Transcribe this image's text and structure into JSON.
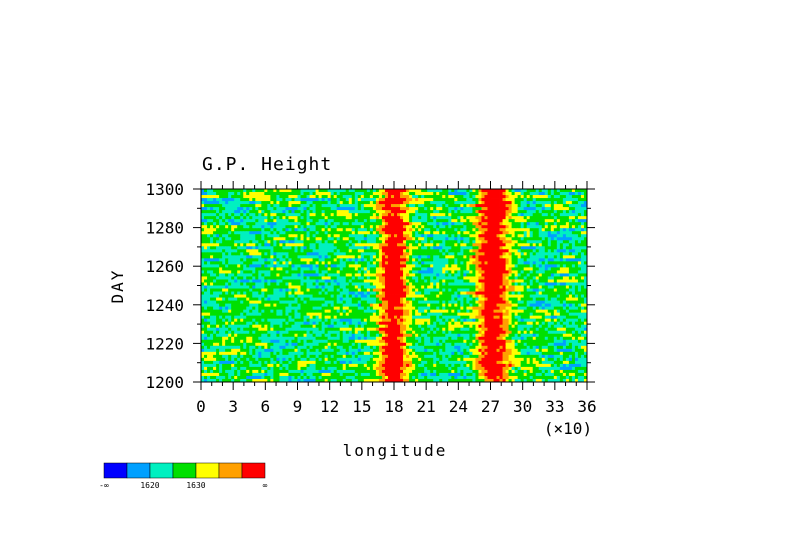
{
  "chart_data": {
    "type": "heatmap",
    "title": "G.P. Height",
    "xlabel": "longitude",
    "ylabel": "DAY",
    "x_scale_label": "(×10)",
    "xlim": [
      0,
      36
    ],
    "ylim": [
      1200,
      1300
    ],
    "x_ticks": [
      "0",
      "3",
      "6",
      "9",
      "12",
      "15",
      "18",
      "21",
      "24",
      "27",
      "30",
      "33",
      "36"
    ],
    "y_ticks": [
      "1200",
      "1220",
      "1240",
      "1260",
      "1280",
      "1300"
    ],
    "colorbar": {
      "colors": [
        "#0000ff",
        "#00a0ff",
        "#00f0c0",
        "#00e000",
        "#ffff00",
        "#ffa000",
        "#ff0000"
      ],
      "labels": [
        "-∞",
        "1620",
        "1630",
        "∞"
      ]
    },
    "bands": [
      {
        "x_min": 16.5,
        "x_max": 19.5,
        "note_level": "high"
      },
      {
        "x_min": 25.5,
        "x_max": 29.0,
        "note_level": "high"
      }
    ]
  }
}
